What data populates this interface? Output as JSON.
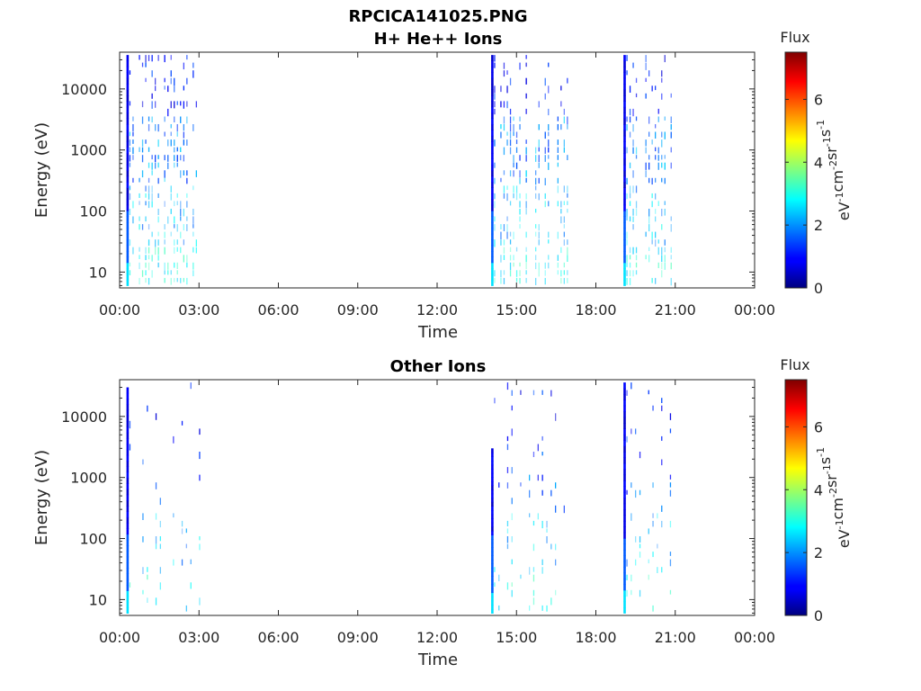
{
  "figure_title": "RPCICA141025.PNG",
  "chart_data": [
    {
      "type": "heatmap",
      "title": "H+ He++ Ions",
      "xlabel": "Time",
      "ylabel": "Energy (eV)",
      "x_tick_labels": [
        "00:00",
        "03:00",
        "06:00",
        "09:00",
        "12:00",
        "15:00",
        "18:00",
        "21:00",
        "00:00"
      ],
      "x_range_hours": [
        0,
        24
      ],
      "y_scale": "log",
      "y_tick_values": [
        10,
        100,
        1000,
        10000
      ],
      "y_tick_labels": [
        "10",
        "100",
        "1000",
        "10000"
      ],
      "y_range": [
        5.5,
        40000
      ],
      "colorbar": {
        "label": "Flux",
        "unit_label": "eV-1cm-2sr-1s-1",
        "range": [
          0,
          7.5
        ],
        "tick_values": [
          0,
          2,
          4,
          6
        ],
        "tick_labels": [
          "0",
          "2",
          "4",
          "6"
        ],
        "colormap": "jet"
      },
      "data_intervals": [
        {
          "start": "00:18",
          "end": "03:05",
          "density": "dense"
        },
        {
          "start": "14:05",
          "end": "16:55",
          "density": "dense"
        },
        {
          "start": "19:05",
          "end": "20:55",
          "density": "dense"
        }
      ],
      "highlight_lines": [
        {
          "time": "00:18",
          "e_min": 6,
          "e_max": 36000
        },
        {
          "time": "14:05",
          "e_min": 6,
          "e_max": 36000
        },
        {
          "time": "19:05",
          "e_min": 6,
          "e_max": 36000
        }
      ]
    },
    {
      "type": "heatmap",
      "title": "Other Ions",
      "xlabel": "Time",
      "ylabel": "Energy (eV)",
      "x_tick_labels": [
        "00:00",
        "03:00",
        "06:00",
        "09:00",
        "12:00",
        "15:00",
        "18:00",
        "21:00",
        "00:00"
      ],
      "x_range_hours": [
        0,
        24
      ],
      "y_scale": "log",
      "y_tick_values": [
        10,
        100,
        1000,
        10000
      ],
      "y_tick_labels": [
        "10",
        "100",
        "1000",
        "10000"
      ],
      "y_range": [
        5.5,
        40000
      ],
      "colorbar": {
        "label": "Flux",
        "unit_label": "eV-1cm-2sr-1s-1",
        "range": [
          0,
          7.5
        ],
        "tick_values": [
          0,
          2,
          4,
          6
        ],
        "tick_labels": [
          "0",
          "2",
          "4",
          "6"
        ],
        "colormap": "jet"
      },
      "data_intervals": [
        {
          "start": "00:18",
          "end": "03:05",
          "density": "sparse"
        },
        {
          "start": "14:05",
          "end": "16:55",
          "density": "sparse"
        },
        {
          "start": "19:05",
          "end": "20:55",
          "density": "sparse"
        }
      ],
      "highlight_lines": [
        {
          "time": "00:18",
          "e_min": 6,
          "e_max": 30000
        },
        {
          "time": "14:05",
          "e_min": 6,
          "e_max": 3000
        },
        {
          "time": "19:05",
          "e_min": 6,
          "e_max": 36000
        }
      ]
    }
  ]
}
